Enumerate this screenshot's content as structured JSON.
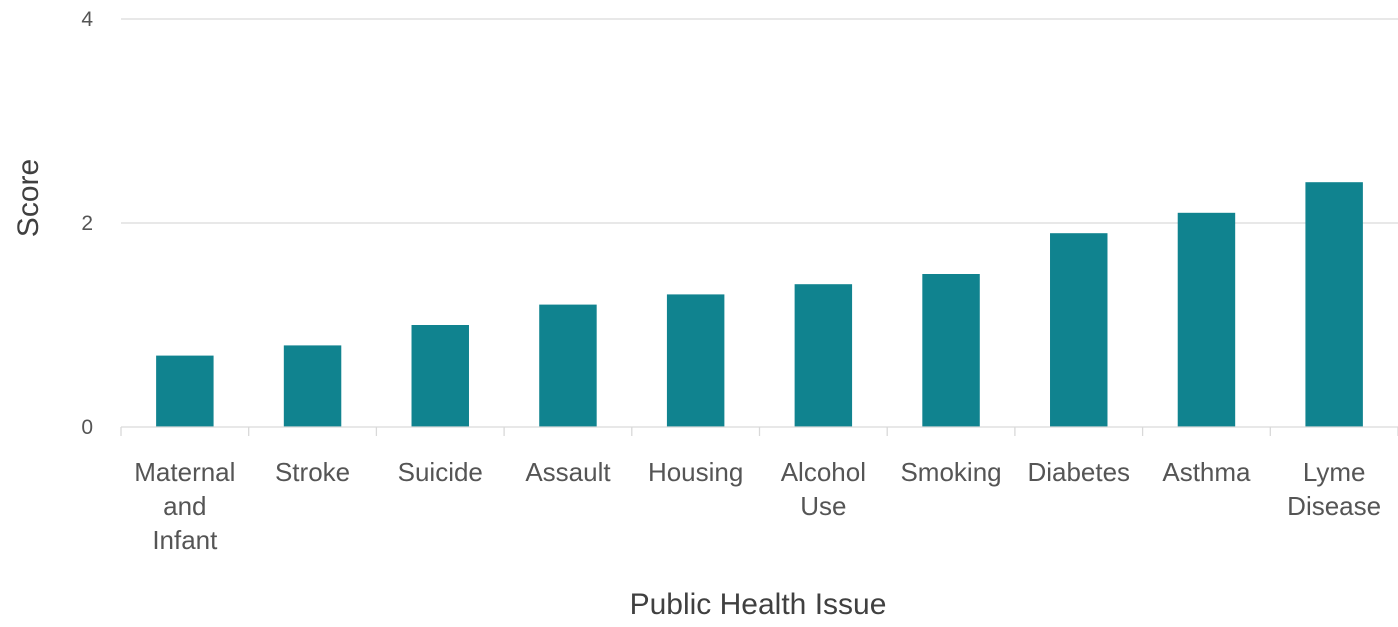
{
  "chart_data": {
    "type": "bar",
    "title": "",
    "xlabel": "Public Health Issue",
    "ylabel": "Score",
    "ylim": [
      0,
      4
    ],
    "yticks": [
      "0",
      "2",
      "4"
    ],
    "grid": true,
    "legend": "none",
    "bar_color": "#10838F",
    "categories": [
      [
        "Maternal",
        "and",
        "Infant"
      ],
      [
        "Stroke"
      ],
      [
        "Suicide"
      ],
      [
        "Assault"
      ],
      [
        "Housing"
      ],
      [
        "Alcohol",
        "Use"
      ],
      [
        "Smoking"
      ],
      [
        "Diabetes"
      ],
      [
        "Asthma"
      ],
      [
        "Lyme",
        "Disease"
      ]
    ],
    "values": [
      0.7,
      0.8,
      1.0,
      1.2,
      1.3,
      1.4,
      1.5,
      1.9,
      2.1,
      2.4
    ]
  }
}
